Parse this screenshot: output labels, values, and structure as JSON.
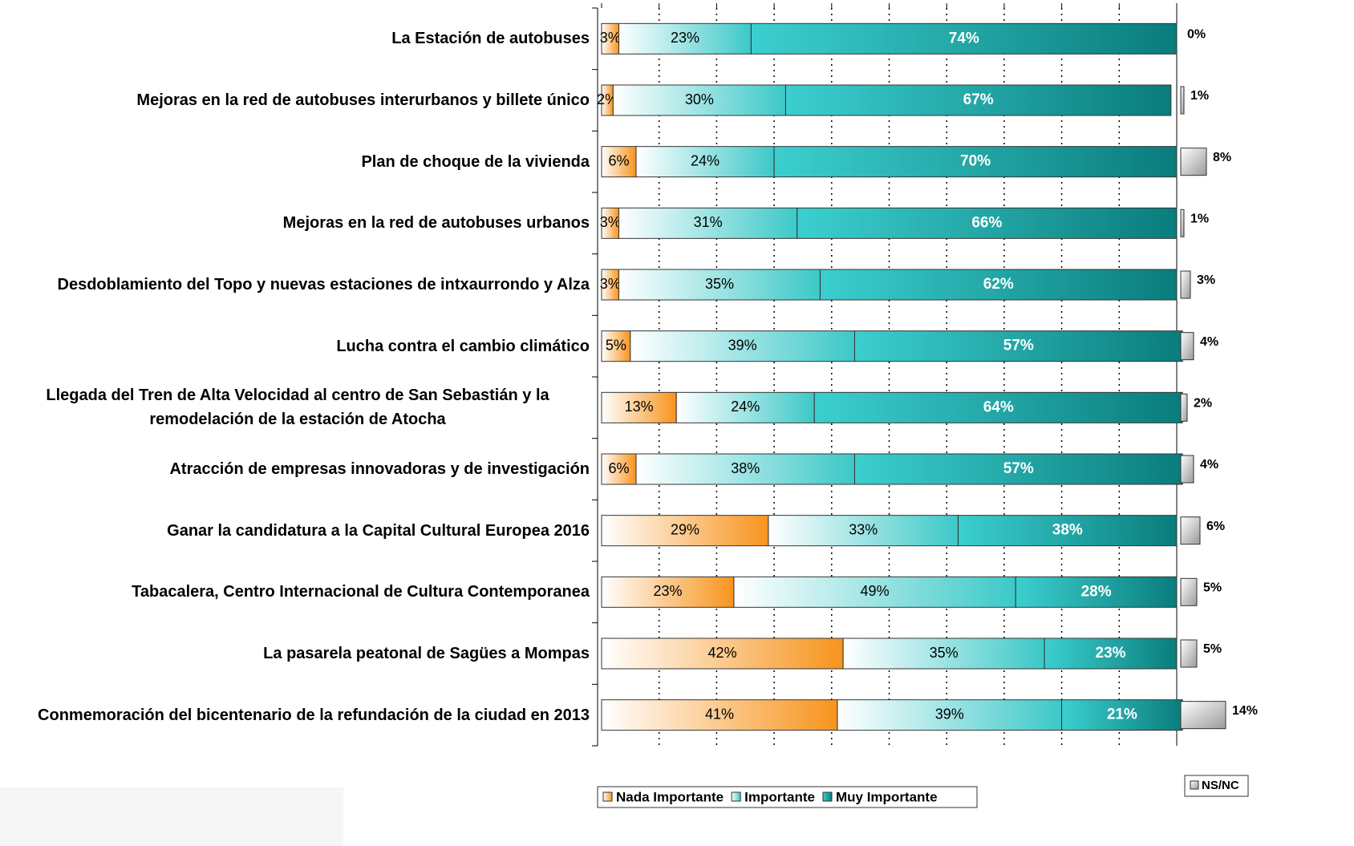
{
  "chart_data": {
    "type": "stacked-bar-horizontal",
    "categories": [
      "La Estación de autobuses",
      "Mejoras en la red de autobuses interurbanos y billete único",
      "Plan de choque de la vivienda",
      "Mejoras en la red de autobuses urbanos",
      "Desdoblamiento del Topo y nuevas estaciones de intxaurrondo y Alza",
      "Lucha contra el cambio climático",
      "Llegada del Tren de Alta Velocidad al centro de San Sebastián y la remodelación de la estación de Atocha",
      "Atracción de empresas innovadoras y de investigación",
      "Ganar la candidatura a la Capital Cultural Europea 2016",
      "Tabacalera, Centro Internacional de Cultura Contemporanea",
      "La pasarela peatonal de Sagües a Mompas",
      "Conmemoración del bicentenario de la refundación de la ciudad en 2013"
    ],
    "series": [
      {
        "name": "Nada Importante",
        "color": "#f7941d",
        "values": [
          3,
          2,
          6,
          3,
          3,
          5,
          13,
          6,
          29,
          23,
          42,
          41
        ],
        "value_labels": [
          "3%",
          "2%",
          "6%",
          "3%",
          "3%",
          "5%",
          "13%",
          "6%",
          "29%",
          "23%",
          "42%",
          "41%"
        ]
      },
      {
        "name": "Importante",
        "color": "#3cc8c8",
        "values": [
          23,
          30,
          24,
          31,
          35,
          39,
          24,
          38,
          33,
          49,
          35,
          39
        ],
        "value_labels": [
          "23%",
          "30%",
          "24%",
          "31%",
          "35%",
          "39%",
          "24%",
          "38%",
          "33%",
          "49%",
          "35%",
          "39%"
        ]
      },
      {
        "name": "Muy Importante",
        "color": "#0a7c7c",
        "values": [
          74,
          67,
          70,
          66,
          62,
          57,
          64,
          57,
          38,
          28,
          23,
          21
        ],
        "value_labels": [
          "74%",
          "67%",
          "70%",
          "66%",
          "62%",
          "57%",
          "64%",
          "57%",
          "38%",
          "28%",
          "23%",
          "21%"
        ]
      }
    ],
    "ns_nc": {
      "name": "NS/NC",
      "color": "#9a9a9a",
      "values": [
        0,
        1,
        8,
        1,
        3,
        4,
        2,
        4,
        6,
        5,
        5,
        14
      ],
      "value_labels": [
        "0%",
        "1%",
        "8%",
        "1%",
        "3%",
        "4%",
        "2%",
        "4%",
        "6%",
        "5%",
        "5%",
        "14%"
      ]
    },
    "xlim": [
      0,
      100
    ],
    "xticks": [
      0,
      10,
      20,
      30,
      40,
      50,
      60,
      70,
      80,
      90,
      100
    ],
    "grid": true
  }
}
